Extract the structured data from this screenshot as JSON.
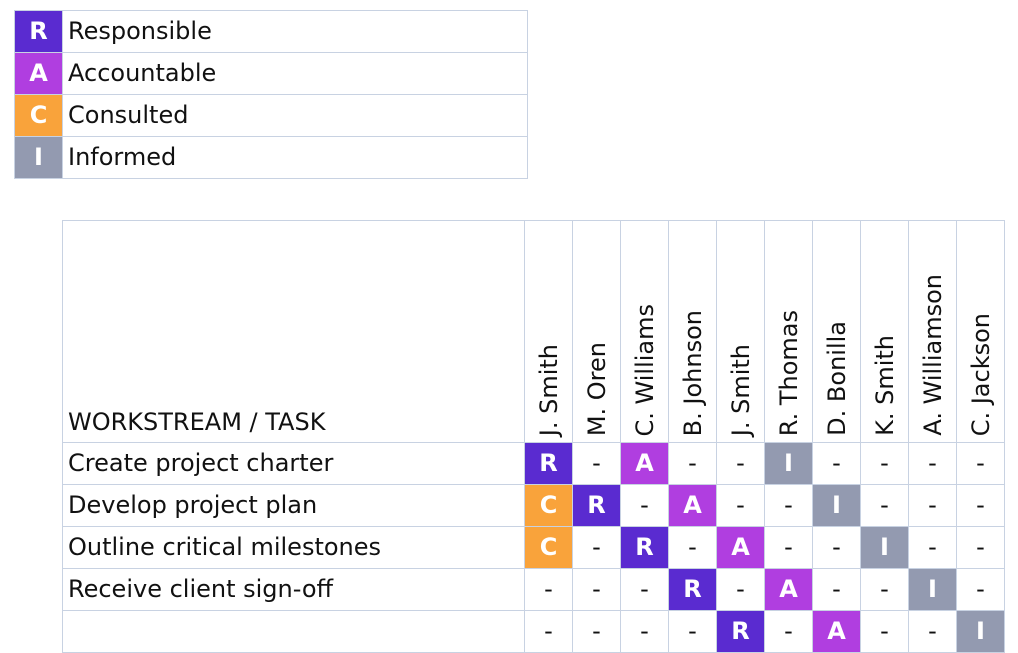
{
  "legend": [
    {
      "code": "R",
      "label": "Responsible",
      "color": "#5a2bd0"
    },
    {
      "code": "A",
      "label": "Accountable",
      "color": "#b03ee0"
    },
    {
      "code": "C",
      "label": "Consulted",
      "color": "#f9a33b"
    },
    {
      "code": "I",
      "label": "Informed",
      "color": "#939ab0"
    }
  ],
  "matrix": {
    "header_label": "WORKSTREAM / TASK",
    "people": [
      "J. Smith",
      "M. Oren",
      "C. Williams",
      "B. Johnson",
      "J. Smith",
      "R. Thomas",
      "D. Bonilla",
      "K. Smith",
      "A. Williamson",
      "C. Jackson"
    ],
    "empty_mark": "-",
    "rows": [
      {
        "task": "Create project charter",
        "cells": [
          "R",
          "-",
          "A",
          "-",
          "-",
          "I",
          "-",
          "-",
          "-",
          "-"
        ]
      },
      {
        "task": "Develop project plan",
        "cells": [
          "C",
          "R",
          "-",
          "A",
          "-",
          "-",
          "I",
          "-",
          "-",
          "-"
        ]
      },
      {
        "task": "Outline critical milestones",
        "cells": [
          "C",
          "-",
          "R",
          "-",
          "A",
          "-",
          "-",
          "I",
          "-",
          "-"
        ]
      },
      {
        "task": "Receive client sign-off",
        "cells": [
          "-",
          "-",
          "-",
          "R",
          "-",
          "A",
          "-",
          "-",
          "I",
          "-"
        ]
      },
      {
        "task": "",
        "cells": [
          "-",
          "-",
          "-",
          "-",
          "R",
          "-",
          "A",
          "-",
          "-",
          "I"
        ]
      }
    ]
  }
}
